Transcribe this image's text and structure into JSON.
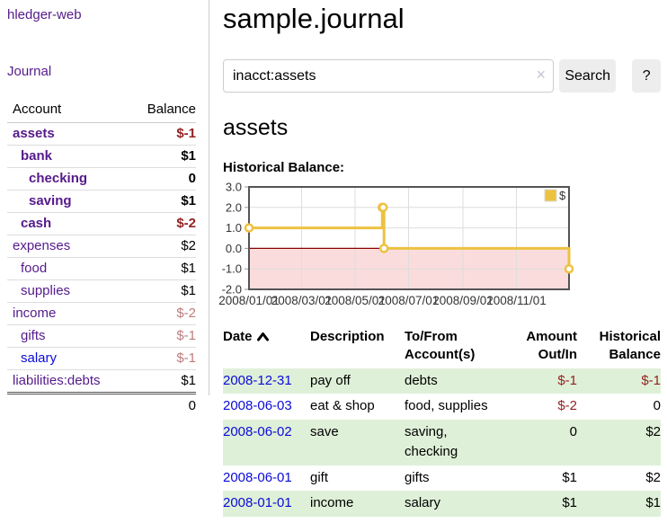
{
  "app": {
    "brand": "hledger-web",
    "nav": {
      "journal": "Journal"
    }
  },
  "sidebar": {
    "headers": {
      "account": "Account",
      "balance": "Balance"
    },
    "accounts": [
      {
        "name": "assets",
        "indent": 0,
        "emph": true,
        "link": "purple",
        "balance": "$-1",
        "bal_class": "negs"
      },
      {
        "name": "bank",
        "indent": 1,
        "emph": true,
        "link": "purple",
        "balance": "$1",
        "bal_class": "pos"
      },
      {
        "name": "checking",
        "indent": 2,
        "emph": true,
        "link": "purple",
        "balance": "0",
        "bal_class": "pos"
      },
      {
        "name": "saving",
        "indent": 2,
        "emph": true,
        "link": "purple",
        "balance": "$1",
        "bal_class": "pos"
      },
      {
        "name": "cash",
        "indent": 1,
        "emph": true,
        "link": "purple",
        "balance": "$-2",
        "bal_class": "negs"
      },
      {
        "name": "expenses",
        "indent": 0,
        "emph": false,
        "link": "purple",
        "balance": "$2",
        "bal_class": "pos"
      },
      {
        "name": "food",
        "indent": 1,
        "emph": false,
        "link": "purple",
        "balance": "$1",
        "bal_class": "pos"
      },
      {
        "name": "supplies",
        "indent": 1,
        "emph": false,
        "link": "purple",
        "balance": "$1",
        "bal_class": "pos"
      },
      {
        "name": "income",
        "indent": 0,
        "emph": false,
        "link": "purple",
        "balance": "$-2",
        "bal_class": "negl"
      },
      {
        "name": "gifts",
        "indent": 1,
        "emph": false,
        "link": "purple",
        "balance": "$-1",
        "bal_class": "negl"
      },
      {
        "name": "salary",
        "indent": 1,
        "emph": false,
        "link": "blue",
        "balance": "$-1",
        "bal_class": "negl"
      },
      {
        "name": "liabilities:debts",
        "indent": 0,
        "emph": false,
        "link": "purple",
        "balance": "$1",
        "bal_class": "pos"
      }
    ],
    "total": "0"
  },
  "main": {
    "title": "sample.journal",
    "search": {
      "value": "inacct:assets",
      "clear_icon": "×",
      "button": "Search",
      "help_button": "?"
    },
    "account_heading": "assets",
    "chart_label": "Historical Balance:"
  },
  "chart_data": {
    "type": "line",
    "title": "Historical Balance",
    "step": true,
    "legend": [
      "$"
    ],
    "legend_position": "top-right",
    "x_range": [
      "2008-01-01",
      "2008-12-31"
    ],
    "x_ticks": [
      "2008/01/01",
      "2008/03/01",
      "2008/05/01",
      "2008/07/01",
      "2008/09/01",
      "2008/11/01"
    ],
    "y_ticks": [
      "3.0",
      "2.0",
      "1.0",
      "0.0",
      "-1.0",
      "-2.0"
    ],
    "ylim": [
      -2,
      3
    ],
    "grid": true,
    "series": [
      {
        "name": "$",
        "points": [
          [
            "2008-01-01",
            1
          ],
          [
            "2008-06-01",
            2
          ],
          [
            "2008-06-02",
            2
          ],
          [
            "2008-06-03",
            0
          ],
          [
            "2008-12-31",
            -1
          ]
        ]
      }
    ],
    "colors": {
      "line": "#edc240",
      "marker_fill": "#ffffff",
      "negative_region": "#fbdcdc",
      "zero_line": "#8b0000",
      "border": "#545454",
      "grid": "#dddddd",
      "tick_text": "#333333"
    }
  },
  "register": {
    "headers": {
      "date": "Date",
      "description": "Description",
      "accounts": "To/From Account(s)",
      "amount": "Amount Out/In",
      "balance": "Historical Balance"
    },
    "rows": [
      {
        "date": "2008-12-31",
        "description": "pay off",
        "accounts": "debts",
        "amount": "$-1",
        "amount_neg": true,
        "balance": "$-1",
        "balance_neg": true,
        "shade": true
      },
      {
        "date": "2008-06-03",
        "description": "eat & shop",
        "accounts": "food, supplies",
        "amount": "$-2",
        "amount_neg": true,
        "balance": "0",
        "balance_neg": false,
        "shade": false
      },
      {
        "date": "2008-06-02",
        "description": "save",
        "accounts": "saving, checking",
        "amount": "0",
        "amount_neg": false,
        "balance": "$2",
        "balance_neg": false,
        "shade": true
      },
      {
        "date": "2008-06-01",
        "description": "gift",
        "accounts": "gifts",
        "amount": "$1",
        "amount_neg": false,
        "balance": "$2",
        "balance_neg": false,
        "shade": false
      },
      {
        "date": "2008-01-01",
        "description": "income",
        "accounts": "salary",
        "amount": "$1",
        "amount_neg": false,
        "balance": "$1",
        "balance_neg": false,
        "shade": true
      }
    ]
  }
}
